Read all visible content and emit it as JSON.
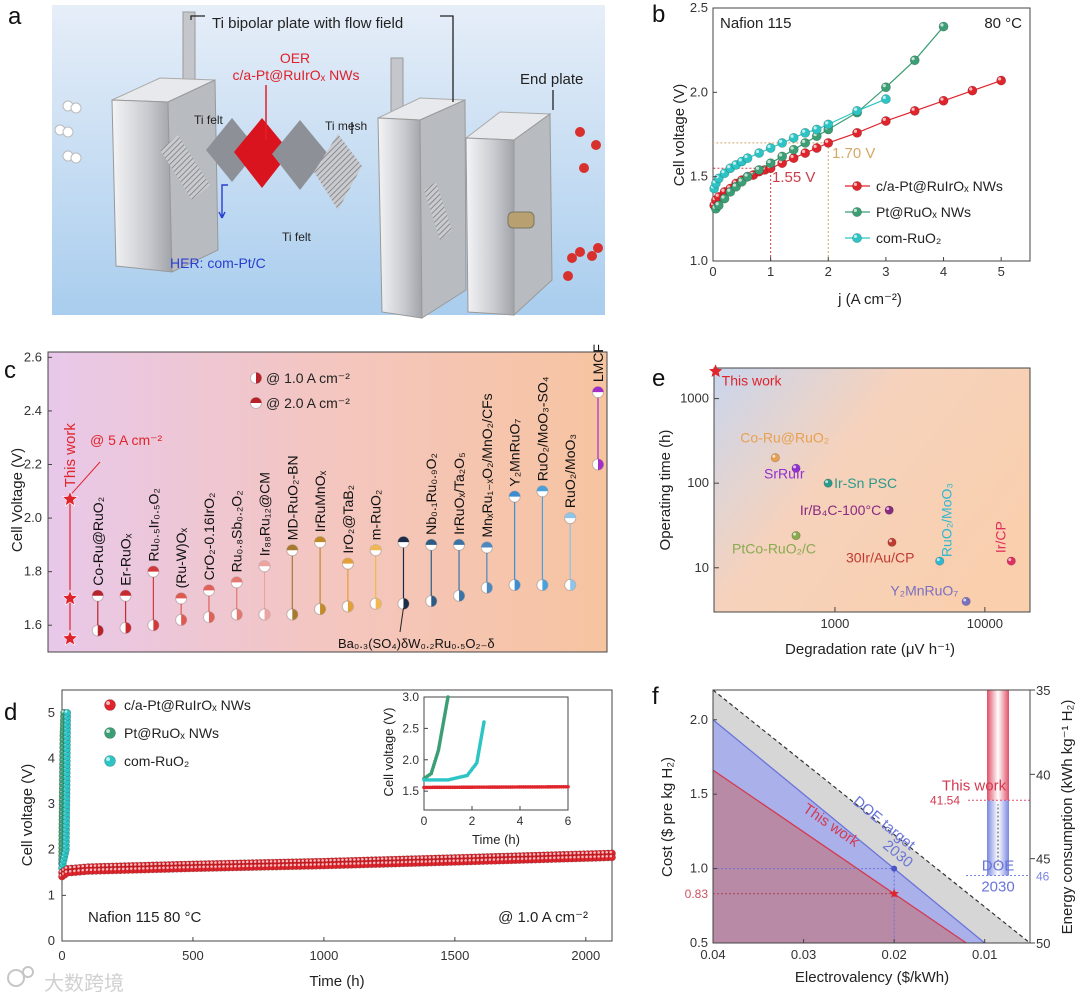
{
  "panel_labels": [
    "a",
    "b",
    "c",
    "d",
    "e",
    "f"
  ],
  "watermark": "大数跨境",
  "schematic": {
    "bipolar_plate": "Ti bipolar plate with flow field",
    "oer_title": "OER",
    "oer_catalyst": "c/a-Pt@RuIrOₓ NWs",
    "end_plate": "End plate",
    "ti_felt_1": "Ti felt",
    "ti_mesh": "Ti mesh",
    "ti_felt_2": "Ti felt",
    "her": "HER: com-Pt/C",
    "colors": {
      "oer": "#e0202a",
      "her": "#2a3fd0",
      "membrane": "#d9141e"
    }
  },
  "chart_data": [
    {
      "panel": "b",
      "type": "line",
      "title": "",
      "annotations": [
        "Nafion 115",
        "80 °C",
        "1.55 V",
        "1.70 V"
      ],
      "xlabel": "j (A cm⁻²)",
      "ylabel": "Cell voltage (V)",
      "xlim": [
        0,
        5.5
      ],
      "ylim": [
        1.0,
        2.5
      ],
      "xticks": [
        0,
        1,
        2,
        3,
        4,
        5
      ],
      "xtick_labels": [
        "0",
        "1",
        "2",
        "3",
        "4",
        "5"
      ],
      "yticks": [
        1.0,
        1.5,
        2.0,
        2.5
      ],
      "ytick_labels": [
        "1.0",
        "1.5",
        "2.0",
        "2.5"
      ],
      "legend_position": "bottom-right",
      "reference_points": [
        {
          "x": 1,
          "y": 1.55,
          "color": "#c9404a"
        },
        {
          "x": 2,
          "y": 1.7,
          "color": "#d4a865"
        }
      ],
      "series": [
        {
          "name": "c/a-Pt@RuIrOₓ NWs",
          "color": "#e0242c",
          "points": [
            [
              0.02,
              1.33
            ],
            [
              0.05,
              1.36
            ],
            [
              0.1,
              1.38
            ],
            [
              0.2,
              1.41
            ],
            [
              0.3,
              1.43
            ],
            [
              0.4,
              1.46
            ],
            [
              0.5,
              1.48
            ],
            [
              0.6,
              1.5
            ],
            [
              0.7,
              1.51
            ],
            [
              0.8,
              1.53
            ],
            [
              0.9,
              1.54
            ],
            [
              1.0,
              1.55
            ],
            [
              1.2,
              1.58
            ],
            [
              1.4,
              1.61
            ],
            [
              1.6,
              1.64
            ],
            [
              1.8,
              1.67
            ],
            [
              2.0,
              1.7
            ],
            [
              2.5,
              1.76
            ],
            [
              3.0,
              1.83
            ],
            [
              3.5,
              1.89
            ],
            [
              4.0,
              1.95
            ],
            [
              4.5,
              2.01
            ],
            [
              5.0,
              2.07
            ]
          ]
        },
        {
          "name": "Pt@RuOₓ NWs",
          "color": "#3c9e74",
          "points": [
            [
              0.05,
              1.31
            ],
            [
              0.1,
              1.33
            ],
            [
              0.2,
              1.37
            ],
            [
              0.3,
              1.41
            ],
            [
              0.4,
              1.44
            ],
            [
              0.5,
              1.47
            ],
            [
              0.6,
              1.5
            ],
            [
              0.8,
              1.54
            ],
            [
              1.0,
              1.58
            ],
            [
              1.2,
              1.62
            ],
            [
              1.4,
              1.66
            ],
            [
              1.6,
              1.7
            ],
            [
              1.8,
              1.74
            ],
            [
              2.0,
              1.78
            ],
            [
              2.5,
              1.88
            ],
            [
              3.0,
              2.03
            ],
            [
              3.5,
              2.19
            ],
            [
              4.0,
              2.39
            ]
          ]
        },
        {
          "name": "com-RuO₂",
          "color": "#2cc4c4",
          "points": [
            [
              0.02,
              1.43
            ],
            [
              0.05,
              1.46
            ],
            [
              0.1,
              1.49
            ],
            [
              0.2,
              1.52
            ],
            [
              0.3,
              1.55
            ],
            [
              0.4,
              1.57
            ],
            [
              0.5,
              1.59
            ],
            [
              0.6,
              1.61
            ],
            [
              0.8,
              1.64
            ],
            [
              1.0,
              1.67
            ],
            [
              1.2,
              1.7
            ],
            [
              1.4,
              1.73
            ],
            [
              1.6,
              1.76
            ],
            [
              1.8,
              1.78
            ],
            [
              2.0,
              1.81
            ],
            [
              2.5,
              1.89
            ],
            [
              3.0,
              1.96
            ]
          ]
        }
      ]
    },
    {
      "panel": "c",
      "type": "scatter",
      "title": "",
      "xlabel": "",
      "ylabel": "Cell Voltage (V)",
      "ylim": [
        1.5,
        2.62
      ],
      "yticks": [
        1.6,
        1.8,
        2.0,
        2.2,
        2.4,
        2.6
      ],
      "ytick_labels": [
        "1.6",
        "1.8",
        "2.0",
        "2.2",
        "2.4",
        "2.6"
      ],
      "legend": [
        "@ 1.0 A cm⁻²",
        "@ 2.0 A cm⁻²"
      ],
      "legend_position": "top-center",
      "this_work_5A": {
        "label": "@ 5 A cm⁻²",
        "value": 2.07
      },
      "categories": [
        "This work",
        "Co-Ru@RuO₂",
        "Er-RuOₓ",
        "Ru₀.₅Ir₀.₅O₂",
        "(Ru-W)Oₓ",
        "CrO₂-0.16IrO₂",
        "Ru₀.₈Sb₀.₂O₂",
        "Ir₈₈Ru₁₂@CM",
        "MD-RuO₂-BN",
        "IrRuMnOₓ",
        "IrO₂@TaB₂",
        "m-RuO₂",
        "Ba₀.₃(SO₄)δW₀.₂Ru₀.₅O₂₋δ",
        "Nb₀.₁Ru₀.₉O₂",
        "IrRuOₓ/Ta₂O₅",
        "MnₓRu₁₋ₓO₂/MnO₂/CFs",
        "Y₂MnRuO₇",
        "RuO₂/MoO₃-SO₄",
        "RuO₂/MoO₃",
        "LMCF"
      ],
      "colors": [
        "#e0242c",
        "#b8222a",
        "#c42a2e",
        "#d0383a",
        "#de5a50",
        "#e0605a",
        "#e27870",
        "#eca4a0",
        "#a77a30",
        "#c08a2a",
        "#e0a03a",
        "#f0b850",
        "#1c2c48",
        "#2c5c86",
        "#3a74a6",
        "#4a8ac0",
        "#3c8cd0",
        "#4aa0da",
        "#8cc4ea",
        "#a030c8"
      ],
      "series": [
        {
          "name": "@ 1.0 A cm⁻²",
          "values": [
            1.55,
            1.58,
            1.59,
            1.6,
            1.62,
            1.63,
            1.64,
            1.64,
            1.64,
            1.66,
            1.67,
            1.68,
            1.68,
            1.69,
            1.71,
            1.74,
            1.75,
            1.75,
            1.75,
            2.2
          ]
        },
        {
          "name": "@ 2.0 A cm⁻²",
          "values": [
            1.7,
            1.71,
            1.71,
            1.8,
            1.7,
            1.73,
            1.76,
            1.82,
            1.88,
            1.91,
            1.83,
            1.88,
            1.91,
            1.9,
            1.9,
            1.89,
            2.08,
            2.1,
            2.0,
            2.47
          ]
        }
      ]
    },
    {
      "panel": "d",
      "type": "scatter",
      "title": "",
      "annotations": [
        "Nafion 115    80 °C",
        "@ 1.0 A cm⁻²"
      ],
      "xlabel": "Time (h)",
      "ylabel": "Cell voltage (V)",
      "xlim": [
        0,
        2100
      ],
      "ylim": [
        0,
        5.5
      ],
      "xticks": [
        0,
        500,
        1000,
        1500,
        2000
      ],
      "xtick_labels": [
        "0",
        "500",
        "1000",
        "1500",
        "2000"
      ],
      "yticks": [
        0,
        1,
        2,
        3,
        4,
        5
      ],
      "ytick_labels": [
        "0",
        "1",
        "2",
        "3",
        "4",
        "5"
      ],
      "legend_position": "top-left",
      "series": [
        {
          "name": "c/a-Pt@RuIrOₓ NWs",
          "color": "#e0242c",
          "points": [
            [
              0,
              1.5
            ],
            [
              20,
              1.58
            ],
            [
              100,
              1.62
            ],
            [
              500,
              1.68
            ],
            [
              1000,
              1.74
            ],
            [
              1500,
              1.82
            ],
            [
              2100,
              1.92
            ]
          ]
        },
        {
          "name": "Pt@RuOₓ NWs",
          "color": "#3c9e74",
          "points": [
            [
              0,
              1.7
            ],
            [
              2,
              3.0
            ],
            [
              5,
              4.5
            ],
            [
              8,
              5.0
            ]
          ]
        },
        {
          "name": "com-RuO₂",
          "color": "#2cc4c4",
          "points": [
            [
              0,
              1.6
            ],
            [
              15,
              2.0
            ],
            [
              18,
              3.5
            ],
            [
              20,
              5.0
            ]
          ]
        }
      ],
      "inset": {
        "xlabel": "Time (h)",
        "ylabel": "Cell voltage (V)",
        "xlim": [
          0,
          6
        ],
        "ylim": [
          1.2,
          3.0
        ],
        "xticks": [
          0,
          2,
          4,
          6
        ],
        "xtick_labels": [
          "0",
          "2",
          "4",
          "6"
        ],
        "yticks": [
          1.5,
          2.0,
          2.5,
          3.0
        ],
        "ytick_labels": [
          "1.5",
          "2.0",
          "2.5",
          "3.0"
        ],
        "series": [
          {
            "name": "c/a-Pt@RuIrOₓ NWs",
            "color": "#e0242c",
            "points": [
              [
                0,
                1.56
              ],
              [
                6,
                1.57
              ]
            ]
          },
          {
            "name": "Pt@RuOₓ NWs",
            "color": "#3c9e74",
            "points": [
              [
                0,
                1.7
              ],
              [
                0.3,
                1.78
              ],
              [
                0.6,
                2.15
              ],
              [
                1.0,
                3.0
              ]
            ]
          },
          {
            "name": "com-RuO₂",
            "color": "#2cc4c4",
            "points": [
              [
                0,
                1.68
              ],
              [
                1.0,
                1.68
              ],
              [
                1.8,
                1.75
              ],
              [
                2.2,
                1.95
              ],
              [
                2.5,
                2.6
              ]
            ]
          }
        ]
      }
    },
    {
      "panel": "e",
      "type": "scatter",
      "title": "",
      "xlabel": "Degradation rate (μV h⁻¹)",
      "ylabel": "Operating time (h)",
      "xscale": "log",
      "yscale": "log",
      "xlim": [
        156,
        20000
      ],
      "ylim": [
        3,
        2300
      ],
      "xticks": [
        1000,
        10000
      ],
      "xtick_labels": [
        "1000",
        "10000"
      ],
      "yticks": [
        10,
        100,
        1000
      ],
      "ytick_labels": [
        "10",
        "100",
        "1000"
      ],
      "points": [
        {
          "label": "This work",
          "x": 160,
          "y": 2100,
          "color": "#e0242c",
          "marker": "star"
        },
        {
          "label": "Co-Ru@RuO₂",
          "x": 400,
          "y": 200,
          "color": "#e8a050",
          "marker": "circle"
        },
        {
          "label": "SrRuIr",
          "x": 550,
          "y": 150,
          "color": "#9030d0",
          "marker": "circle"
        },
        {
          "label": "Ir-Sn PSC",
          "x": 900,
          "y": 100,
          "color": "#2a9a8a",
          "marker": "circle"
        },
        {
          "label": "Ir/B₄C-100°C",
          "x": 2300,
          "y": 48,
          "color": "#8a2a80",
          "marker": "circle"
        },
        {
          "label": "PtCo-RuO₂/C",
          "x": 550,
          "y": 24,
          "color": "#8aaa50",
          "marker": "circle"
        },
        {
          "label": "30Ir/Au/CP",
          "x": 2400,
          "y": 20,
          "color": "#c03a30",
          "marker": "circle"
        },
        {
          "label": "RuO₂/MoO₃",
          "x": 5000,
          "y": 12,
          "color": "#30b8d0",
          "marker": "circle"
        },
        {
          "label": "Ir/CP",
          "x": 15000,
          "y": 12,
          "color": "#e03060",
          "marker": "circle"
        },
        {
          "label": "Y₂MnRuO₇",
          "x": 7500,
          "y": 4,
          "color": "#7a70c0",
          "marker": "circle"
        }
      ]
    },
    {
      "panel": "f",
      "type": "area",
      "title": "",
      "xlabel": "Electrovalency ($/kWh)",
      "ylabel": "Cost ($ pre kg H₂)",
      "y2label": "Energy consumption (kWh kg⁻¹ H₂)",
      "xlim": [
        0.04,
        0.005
      ],
      "ylim": [
        0.5,
        2.2
      ],
      "y2lim": [
        50,
        35
      ],
      "xticks": [
        0.04,
        0.03,
        0.02,
        0.01
      ],
      "xtick_labels": [
        "0.04",
        "0.03",
        "0.02",
        "0.01"
      ],
      "yticks": [
        0.5,
        1.0,
        1.5,
        2.0
      ],
      "ytick_labels": [
        "0.5",
        "1.0",
        "1.5",
        "2.0"
      ],
      "y2ticks": [
        35,
        40,
        45,
        50
      ],
      "y2tick_labels": [
        "35",
        "40",
        "45",
        "50"
      ],
      "series": [
        {
          "name": "This work",
          "slope": 41.54,
          "color": "#d23a50",
          "fill": "#b98aa6"
        },
        {
          "name": "DOE target",
          "slope": 50,
          "color": "#6a74d8",
          "fill": "#aab0ea"
        },
        {
          "name": "upper bound",
          "line": [
            [
              0.04,
              2.2
            ],
            [
              0.005,
              0.5
            ]
          ],
          "color": "#333333",
          "fill": "#d6d6d6"
        }
      ],
      "annotations": {
        "this_work": "This work",
        "doe_target": "DOE target",
        "doe_year": "2030",
        "cost_this_work": "0.83",
        "cost_doe": 1.0,
        "electricity_price": 0.02
      },
      "energy_bars": [
        {
          "label": "This work",
          "value": 41.54,
          "value_label": "41.54",
          "color": "#e05068"
        },
        {
          "label": "DOE",
          "label2": "2030",
          "value": 46,
          "value_label": "46",
          "color": "#7a88e0"
        }
      ]
    }
  ]
}
